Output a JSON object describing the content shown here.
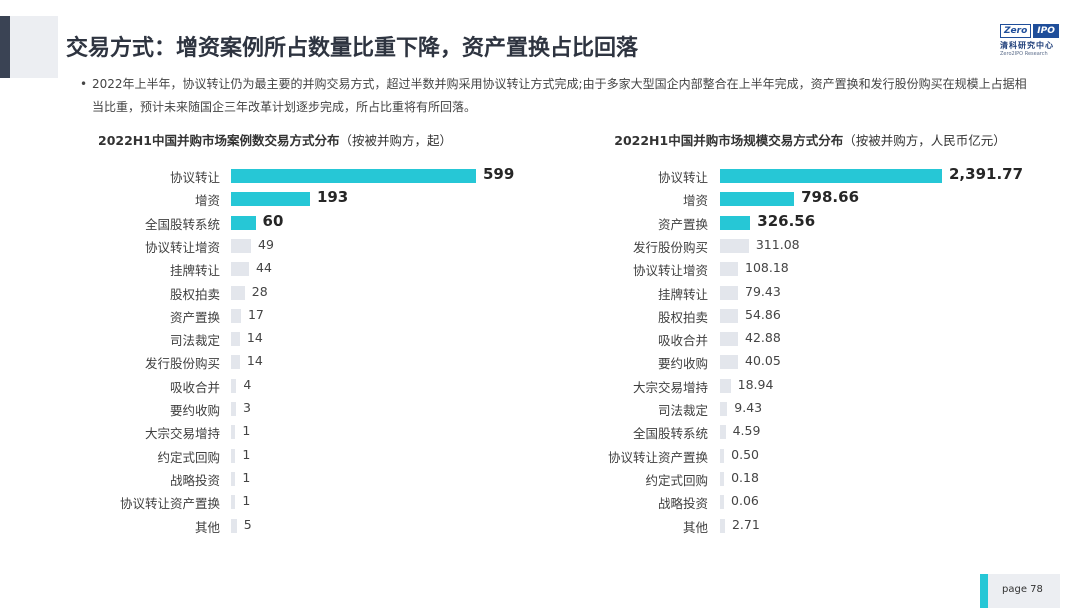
{
  "page": {
    "title": "交易方式：增资案例所占数量比重下降，资产置换占比回落",
    "bullet_mark": "•",
    "bullet": "2022年上半年，协议转让仍为最主要的并购交易方式，超过半数并购采用协议转让方式完成;由于多家大型国企内部整合在上半年完成，资产置换和发行股份购买在规模上占据相当比重，预计未来随国企三年改革计划逐步完成，所占比重将有所回落。",
    "page_label": "page  78"
  },
  "logo": {
    "left_box": "Zero",
    "right_box": "IPO",
    "cn": "清科研究中心",
    "en": "Zero2IPO Research"
  },
  "colors": {
    "highlight": "#26c7d6",
    "muted": "#e3e6ec",
    "accent_dark": "#3a4354"
  },
  "chart_data": [
    {
      "type": "bar",
      "orientation": "horizontal",
      "title": "2022H1中国并购市场案例数交易方式分布",
      "subtitle": "（按被并购方，起）",
      "categories": [
        "协议转让",
        "增资",
        "全国股转系统",
        "协议转让增资",
        "挂牌转让",
        "股权拍卖",
        "资产置换",
        "司法裁定",
        "发行股份购买",
        "吸收合并",
        "要约收购",
        "大宗交易增持",
        "约定式回购",
        "战略投资",
        "协议转让资产置换",
        "其他"
      ],
      "value_labels": [
        "599",
        "193",
        "60",
        "49",
        "44",
        "28",
        "17",
        "14",
        "14",
        "4",
        "3",
        "1",
        "1",
        "1",
        "1",
        "5"
      ],
      "values": [
        599,
        193,
        60,
        49,
        44,
        28,
        17,
        14,
        14,
        4,
        3,
        1,
        1,
        1,
        1,
        5
      ],
      "highlight_count": 3
    },
    {
      "type": "bar",
      "orientation": "horizontal",
      "title": "2022H1中国并购市场规模交易方式分布",
      "subtitle": "（按被并购方，人民币亿元）",
      "categories": [
        "协议转让",
        "增资",
        "资产置换",
        "发行股份购买",
        "协议转让增资",
        "挂牌转让",
        "股权拍卖",
        "吸收合并",
        "要约收购",
        "大宗交易增持",
        "司法裁定",
        "全国股转系统",
        "协议转让资产置换",
        "约定式回购",
        "战略投资",
        "其他"
      ],
      "value_labels": [
        "2,391.77",
        "798.66",
        "326.56",
        "311.08",
        "108.18",
        "79.43",
        "54.86",
        "42.88",
        "40.05",
        "18.94",
        "9.43",
        "4.59",
        "0.50",
        "0.18",
        "0.06",
        "2.71"
      ],
      "values": [
        2391.77,
        798.66,
        326.56,
        311.08,
        108.18,
        79.43,
        54.86,
        42.88,
        40.05,
        18.94,
        9.43,
        4.59,
        0.5,
        0.18,
        0.06,
        2.71
      ],
      "highlight_count": 3
    }
  ]
}
